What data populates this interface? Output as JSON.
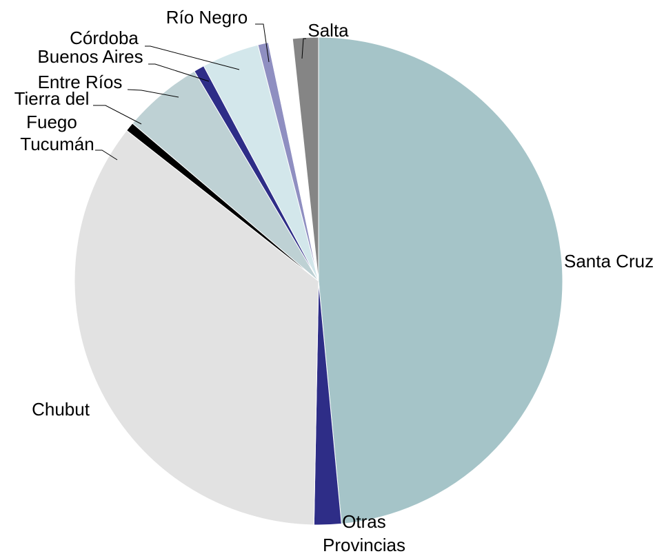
{
  "chart_data": {
    "type": "pie",
    "start_angle_deg": 0,
    "direction": "clockwise",
    "slices": [
      {
        "label": "Santa Cruz",
        "value": 48.5,
        "color": "#a5c4c8"
      },
      {
        "label": "Otras Provincias",
        "value": 1.8,
        "color": "#2e2d87"
      },
      {
        "label": "Chubut",
        "value": 35.3,
        "color": "#e2e2e2"
      },
      {
        "label": "Tucumán",
        "value": 0.6,
        "color": "#000000"
      },
      {
        "label": "Tierra del Fuego",
        "value": 5.3,
        "color": "#bed1d4"
      },
      {
        "label": "Entre Ríos",
        "value": 0.7,
        "color": "#2e2d87"
      },
      {
        "label": "Buenos Aires",
        "value": 3.8,
        "color": "#d3e7eb"
      },
      {
        "label": "Córdoba",
        "value": 0.7,
        "color": "#8f8fc1"
      },
      {
        "label": "Río Negro",
        "value": 1.6,
        "color": "#ffffff"
      },
      {
        "label": "Salta",
        "value": 1.7,
        "color": "#858585"
      }
    ],
    "labels": [
      {
        "slice": 0,
        "lines": [
          "Santa Cruz"
        ]
      },
      {
        "slice": 1,
        "lines": [
          "Otras",
          "Provincias"
        ]
      },
      {
        "slice": 2,
        "lines": [
          "Chubut"
        ]
      },
      {
        "slice": 3,
        "lines": [
          "Tucumán"
        ]
      },
      {
        "slice": 4,
        "lines": [
          "Tierra del",
          "Fuego"
        ]
      },
      {
        "slice": 5,
        "lines": [
          "Entre Ríos"
        ]
      },
      {
        "slice": 6,
        "lines": [
          "Buenos Aires"
        ]
      },
      {
        "slice": 7,
        "lines": [
          "Córdoba"
        ]
      },
      {
        "slice": 8,
        "lines": [
          "Río Negro"
        ]
      },
      {
        "slice": 9,
        "lines": [
          "Salta"
        ]
      }
    ]
  }
}
